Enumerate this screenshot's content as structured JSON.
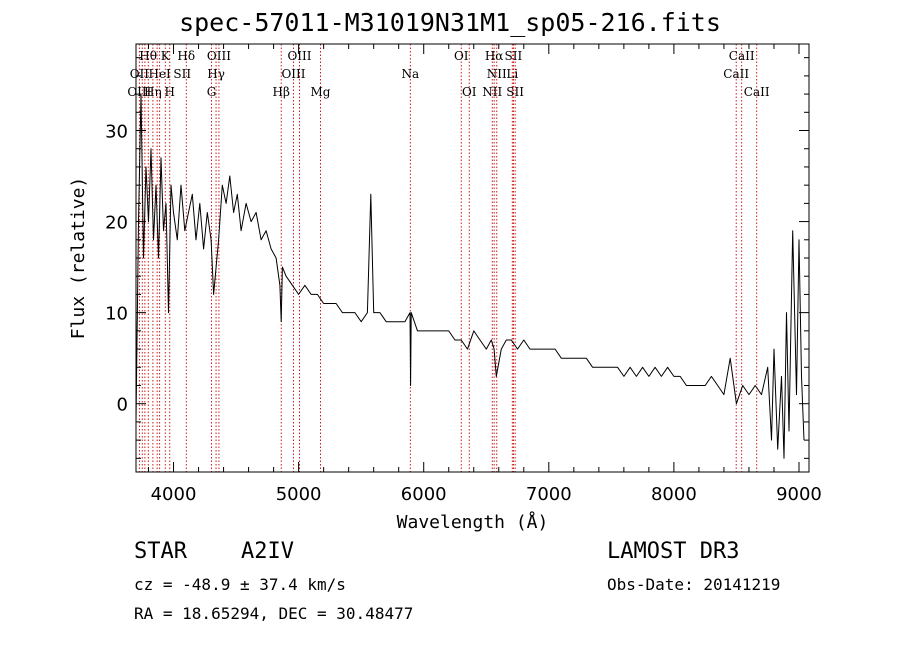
{
  "chart_data": {
    "type": "line",
    "title": "spec-57011-M31019N31M1_sp05-216.fits",
    "xlabel": "Wavelength (Å)",
    "ylabel": "Flux (relative)",
    "xlim": [
      3700,
      9080
    ],
    "ylim": [
      -7.5,
      39.5
    ],
    "xticks": [
      4000,
      5000,
      6000,
      7000,
      8000,
      9000
    ],
    "xtick_labels": [
      "4000",
      "5000",
      "6000",
      "7000",
      "8000",
      "9000"
    ],
    "yticks": [
      0,
      10,
      20,
      30
    ],
    "ytick_labels": [
      "0",
      "10",
      "20",
      "30"
    ],
    "x_minor_step": 200,
    "y_minor_step": 2,
    "series": [
      {
        "name": "spectrum",
        "x": [
          3700,
          3720,
          3740,
          3760,
          3780,
          3800,
          3820,
          3840,
          3860,
          3880,
          3900,
          3920,
          3940,
          3960,
          3980,
          4000,
          4030,
          4060,
          4090,
          4120,
          4150,
          4180,
          4210,
          4240,
          4270,
          4300,
          4320,
          4340,
          4360,
          4390,
          4420,
          4450,
          4480,
          4510,
          4540,
          4580,
          4620,
          4660,
          4700,
          4740,
          4780,
          4820,
          4850,
          4861,
          4870,
          4900,
          4950,
          5000,
          5050,
          5100,
          5150,
          5200,
          5250,
          5300,
          5350,
          5400,
          5450,
          5500,
          5550,
          5577,
          5600,
          5650,
          5700,
          5750,
          5800,
          5850,
          5890,
          5895,
          5900,
          5950,
          6000,
          6050,
          6100,
          6150,
          6200,
          6250,
          6300,
          6350,
          6400,
          6450,
          6500,
          6540,
          6563,
          6580,
          6620,
          6660,
          6700,
          6750,
          6800,
          6850,
          6900,
          6950,
          7000,
          7050,
          7100,
          7150,
          7200,
          7250,
          7300,
          7350,
          7400,
          7450,
          7500,
          7550,
          7600,
          7650,
          7700,
          7750,
          7800,
          7850,
          7900,
          7950,
          8000,
          8050,
          8100,
          8150,
          8200,
          8250,
          8300,
          8350,
          8400,
          8450,
          8500,
          8550,
          8600,
          8650,
          8700,
          8750,
          8780,
          8800,
          8830,
          8860,
          8880,
          8900,
          8920,
          8950,
          8980,
          9000,
          9020,
          9040
        ],
        "y": [
          -2,
          20,
          34,
          16,
          26,
          20,
          28,
          18,
          24,
          16,
          27,
          19,
          22,
          10,
          24,
          21,
          18,
          24,
          19,
          21,
          23,
          18,
          22,
          17,
          21,
          18,
          12,
          15,
          18,
          24,
          22,
          25,
          21,
          23,
          19,
          22,
          20,
          21,
          18,
          19,
          17,
          16,
          13,
          9,
          15,
          14,
          13,
          12,
          13,
          12,
          12,
          11,
          11,
          11,
          10,
          10,
          10,
          9,
          10,
          23,
          10,
          10,
          9,
          9,
          9,
          9,
          10,
          2,
          10,
          8,
          8,
          8,
          8,
          8,
          8,
          7,
          7,
          6,
          8,
          7,
          6,
          7,
          6,
          3,
          6,
          7,
          7,
          6,
          7,
          6,
          6,
          6,
          6,
          6,
          5,
          5,
          5,
          5,
          5,
          4,
          4,
          4,
          4,
          4,
          3,
          4,
          3,
          4,
          3,
          4,
          3,
          4,
          3,
          3,
          2,
          2,
          2,
          2,
          3,
          2,
          1,
          5,
          0,
          2,
          1,
          2,
          1,
          4,
          -4,
          6,
          -5,
          3,
          -6,
          10,
          -3,
          19,
          1,
          18,
          3,
          -4
        ]
      }
    ],
    "line_labels_row1": [
      {
        "label": "Hθ",
        "x": 3797
      },
      {
        "label": "K",
        "x": 3934
      },
      {
        "label": "Hδ",
        "x": 4102
      },
      {
        "label": "OIII",
        "x": 4363
      },
      {
        "label": "OIII",
        "x": 5007
      },
      {
        "label": "OI",
        "x": 6300
      },
      {
        "label": "Hα",
        "x": 6563
      },
      {
        "label": "SII",
        "x": 6717
      },
      {
        "label": "CaII",
        "x": 8542
      }
    ],
    "line_labels_row2": [
      {
        "label": "OII",
        "x": 3727
      },
      {
        "label": "HeI",
        "x": 3889
      },
      {
        "label": "SII",
        "x": 4070
      },
      {
        "label": "Hγ",
        "x": 4340
      },
      {
        "label": "OIII",
        "x": 4959
      },
      {
        "label": "Na",
        "x": 5893
      },
      {
        "label": "NII",
        "x": 6584
      },
      {
        "label": "Li",
        "x": 6708
      },
      {
        "label": "CaII",
        "x": 8498
      }
    ],
    "line_labels_row3": [
      {
        "label": "OIII",
        "x": 3727
      },
      {
        "label": "Hη",
        "x": 3835
      },
      {
        "label": "H",
        "x": 3970
      },
      {
        "label": "G",
        "x": 4304
      },
      {
        "label": "Hβ",
        "x": 4861
      },
      {
        "label": "Mg",
        "x": 5175
      },
      {
        "label": "OI",
        "x": 6364
      },
      {
        "label": "NII",
        "x": 6548
      },
      {
        "label": "SII",
        "x": 6731
      },
      {
        "label": "CaII",
        "x": 8662
      }
    ],
    "marker_lines": [
      3727,
      3750,
      3771,
      3798,
      3835,
      3869,
      3889,
      3934,
      3970,
      4102,
      4304,
      4340,
      4363,
      4861,
      4959,
      5007,
      5175,
      5893,
      6300,
      6364,
      6548,
      6563,
      6584,
      6708,
      6717,
      6731,
      8498,
      8542,
      8662
    ],
    "colors": {
      "spectrum": "#000000",
      "markers": "#cc0000",
      "axes": "#000000"
    }
  },
  "footer": {
    "class_label": "STAR",
    "subclass": "A2IV",
    "survey": "LAMOST DR3",
    "cz": "cz = -48.9 ± 37.4 km/s",
    "obs_date": "Obs-Date: 20141219",
    "radec": "RA =  18.65294, DEC =  30.48477"
  }
}
